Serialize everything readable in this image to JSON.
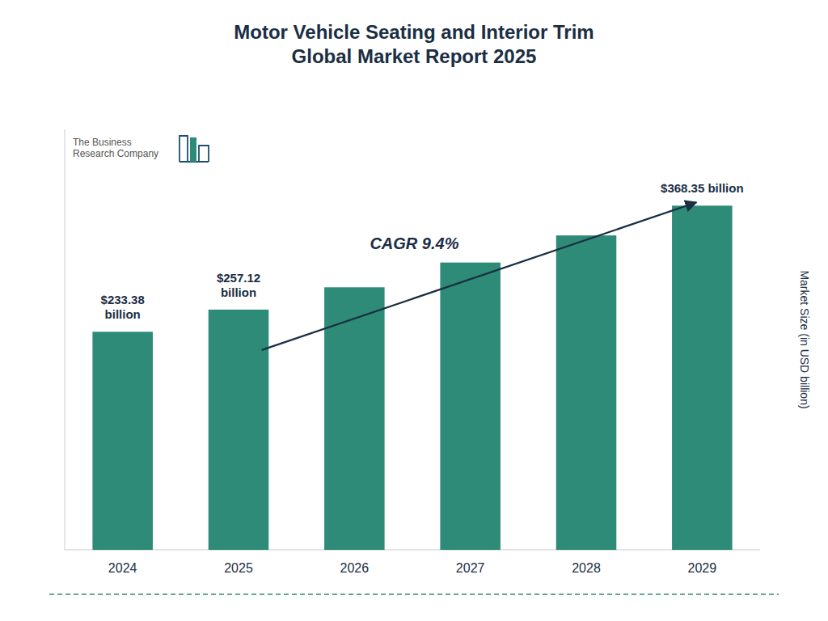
{
  "chart_data": {
    "type": "bar",
    "title": "Motor Vehicle Seating and Interior Trim\nGlobal Market Report 2025",
    "categories": [
      "2024",
      "2025",
      "2026",
      "2027",
      "2028",
      "2029"
    ],
    "values": [
      233.38,
      257.12,
      281.0,
      307.5,
      336.5,
      368.35
    ],
    "value_labels": [
      "$233.38\nbillion",
      "$257.12\nbillion",
      null,
      null,
      null,
      "$368.35 billion"
    ],
    "data_labels": true,
    "color": "#2e8b77",
    "ylabel": "Market Size (in USD billion)",
    "ylim": [
      0,
      450
    ],
    "tick_labels": "x",
    "grid": false,
    "annotations": [
      "CAGR 9.4%",
      "The Business\nResearch Company"
    ]
  }
}
